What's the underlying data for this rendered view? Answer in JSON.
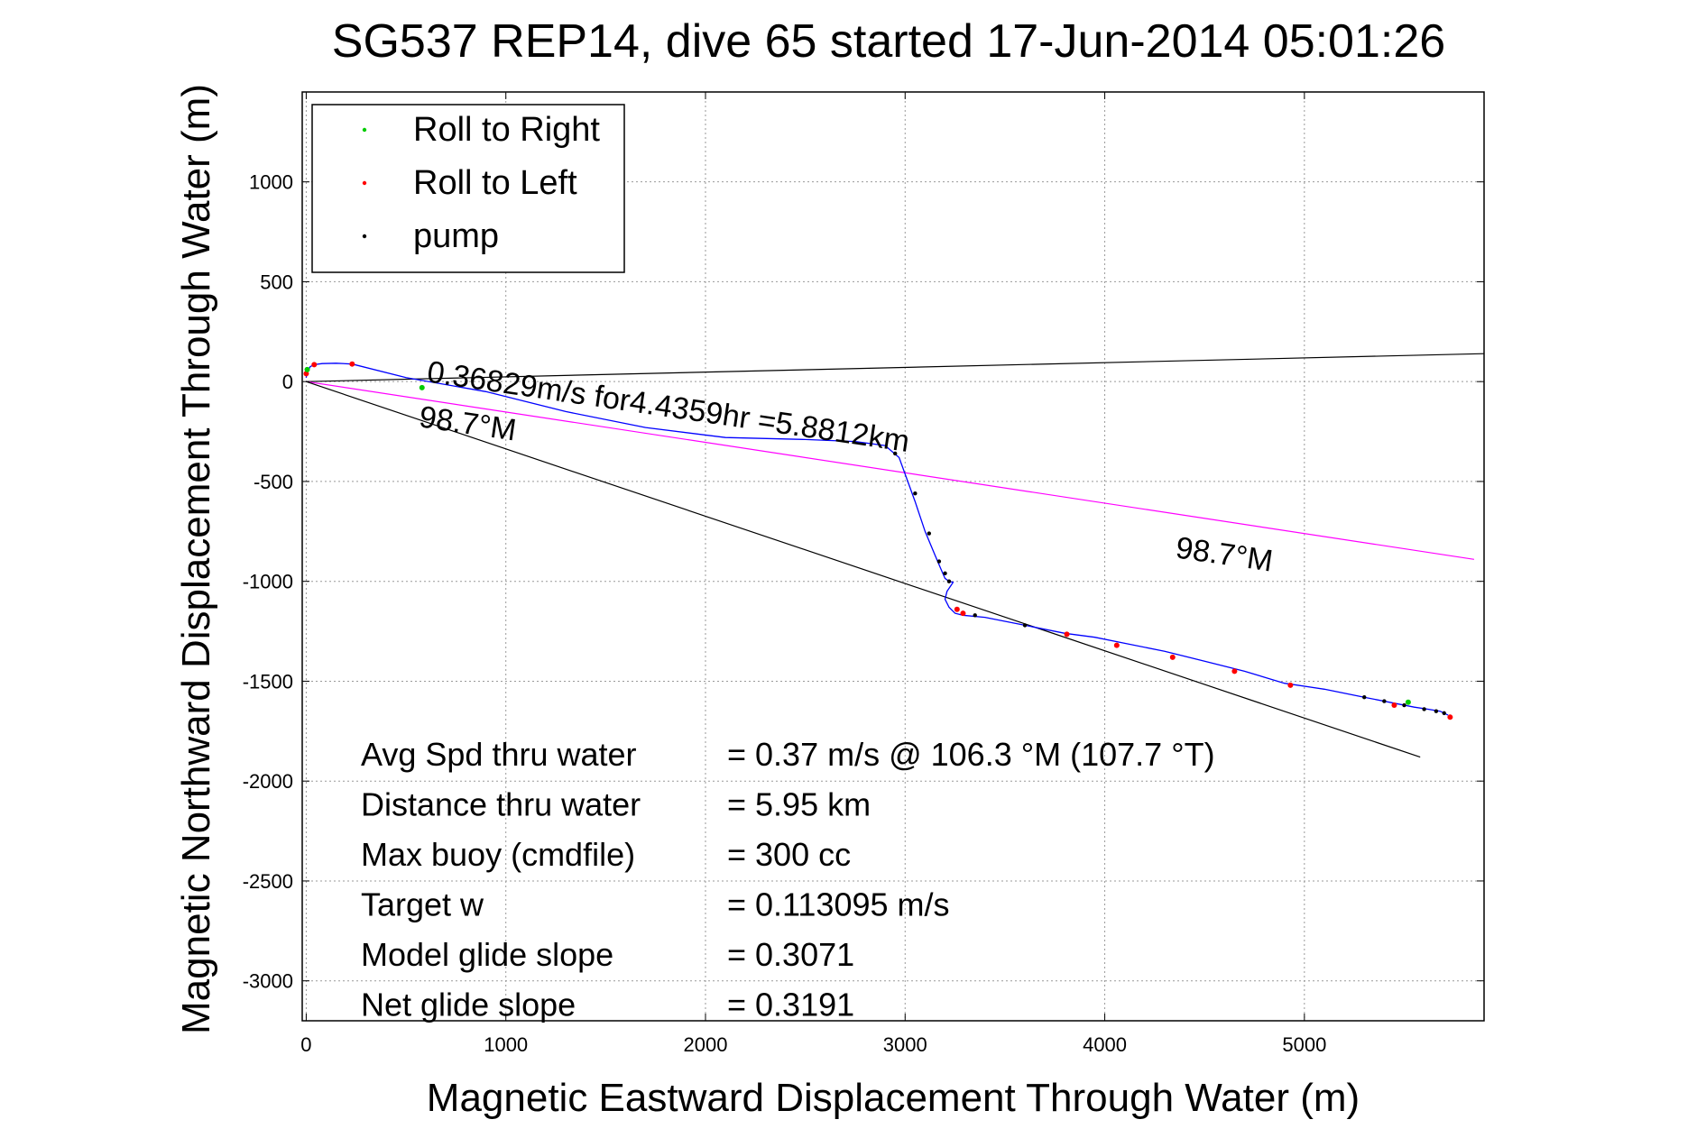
{
  "chart_data": {
    "type": "line",
    "title": "SG537 REP14, dive 65 started 17-Jun-2014 05:01:26",
    "xlabel": "Magnetic Eastward Displacement Through Water (m)",
    "ylabel": "Magnetic Northward Displacement Through Water (m)",
    "xlim": [
      -20,
      5900
    ],
    "ylim": [
      -3200,
      1450
    ],
    "x_ticks": [
      0,
      1000,
      2000,
      3000,
      4000,
      5000
    ],
    "x_tick_labels": [
      "0",
      "1000",
      "2000",
      "3000",
      "4000",
      "5000"
    ],
    "y_ticks": [
      1000,
      500,
      0,
      -500,
      -1000,
      -1500,
      -2000,
      -2500,
      -3000
    ],
    "y_tick_labels": [
      "1000",
      "500",
      "0",
      "-500",
      "-1000",
      "-1500",
      "-2000",
      "-2500",
      "-3000"
    ],
    "grid": true,
    "legend_position": "top-left",
    "legend": [
      {
        "label": "Roll to Right",
        "color": "#00cc00"
      },
      {
        "label": "Roll to Left",
        "color": "#ff0000"
      },
      {
        "label": "pump",
        "color": "#000000"
      }
    ],
    "track": {
      "name": "glider track",
      "color": "#0000ff",
      "x": [
        0,
        5,
        20,
        40,
        80,
        150,
        230,
        500,
        900,
        1300,
        1700,
        2100,
        2500,
        2750,
        2900,
        2970,
        3050,
        3100,
        3150,
        3180,
        3200,
        3220,
        3240,
        3230,
        3210,
        3200,
        3220,
        3250,
        3290,
        3400,
        3600,
        3800,
        3950,
        4100,
        4300,
        4500,
        4700,
        4900,
        5100,
        5300,
        5450,
        5550,
        5620,
        5680,
        5720
      ],
      "y": [
        20,
        50,
        75,
        85,
        90,
        92,
        88,
        20,
        -50,
        -150,
        -230,
        -280,
        -290,
        -300,
        -320,
        -380,
        -600,
        -750,
        -870,
        -940,
        -985,
        -1000,
        -1005,
        -1020,
        -1050,
        -1090,
        -1130,
        -1160,
        -1170,
        -1180,
        -1220,
        -1260,
        -1280,
        -1310,
        -1350,
        -1400,
        -1450,
        -1510,
        -1540,
        -1580,
        -1610,
        -1630,
        -1640,
        -1650,
        -1670
      ]
    },
    "markers": {
      "roll_right": {
        "x": [
          5,
          580,
          5520
        ],
        "y": [
          60,
          -30,
          -1605
        ],
        "color": "#00cc00"
      },
      "roll_left": {
        "x": [
          0,
          40,
          230,
          3260,
          3290,
          3810,
          4060,
          4340,
          4650,
          4930,
          5450,
          5730
        ],
        "y": [
          40,
          85,
          88,
          -1140,
          -1160,
          -1265,
          -1320,
          -1380,
          -1450,
          -1520,
          -1620,
          -1680
        ],
        "color": "#ff0000"
      },
      "pump": {
        "x": [
          2950,
          3050,
          3120,
          3170,
          3200,
          3220,
          3350,
          3600,
          5300,
          5400,
          5500,
          5600,
          5660,
          5700
        ],
        "y": [
          -360,
          -560,
          -760,
          -900,
          -960,
          -1000,
          -1170,
          -1220,
          -1580,
          -1600,
          -1620,
          -1640,
          -1650,
          -1660
        ],
        "color": "#000000"
      }
    },
    "lines": [
      {
        "name": "upper reference",
        "color": "#000000",
        "x": [
          0,
          5900
        ],
        "y": [
          0,
          140
        ]
      },
      {
        "name": "magenta heading line",
        "color": "#ff00ff",
        "x": [
          0,
          5850
        ],
        "y": [
          0,
          -890
        ]
      },
      {
        "name": "lower heading line",
        "color": "#000000",
        "x": [
          0,
          5580
        ],
        "y": [
          0,
          -1880
        ]
      }
    ],
    "annotations": [
      {
        "text": "0.36829m/s for4.4359hr =5.8812km",
        "x": 600,
        "y": 0,
        "rotate": 8.3
      },
      {
        "text": "98.7°M",
        "x": 560,
        "y": -225,
        "rotate": 8.3
      },
      {
        "text": "98.7°M",
        "x": 4350,
        "y": -880,
        "rotate": 8.3
      }
    ],
    "stats": [
      {
        "label": "Avg Spd thru water",
        "value": "=  0.37 m/s @ 106.3 °M (107.7 °T)"
      },
      {
        "label": "Distance thru water",
        "value": "=  5.95 km"
      },
      {
        "label": "Max buoy (cmdfile)",
        "value": "= 300 cc"
      },
      {
        "label": "Target w",
        "value": "= 0.113095 m/s"
      },
      {
        "label": "Model glide slope",
        "value": "= 0.3071"
      },
      {
        "label": "Net glide slope",
        "value": "= 0.3191"
      }
    ]
  }
}
